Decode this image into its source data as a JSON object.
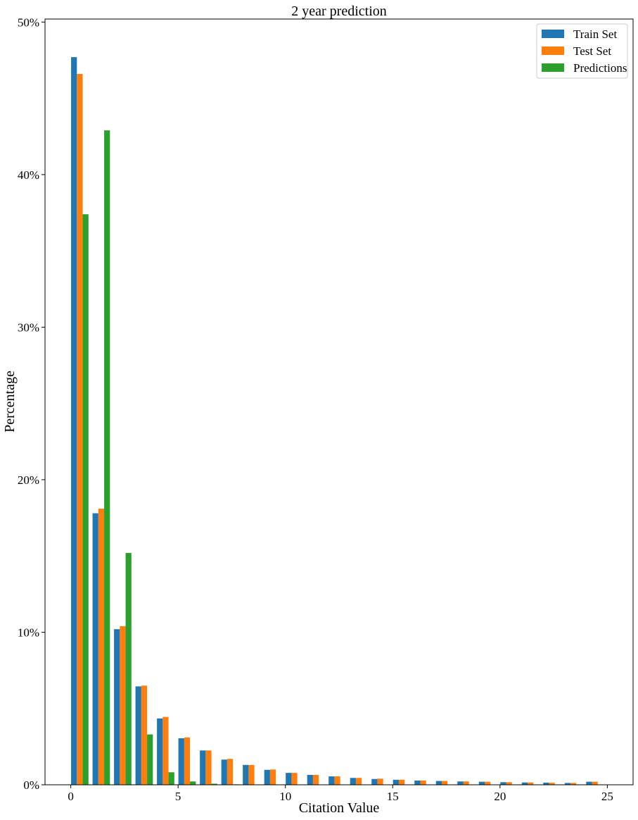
{
  "chart_data": {
    "type": "bar",
    "title": "2 year prediction",
    "xlabel": "Citation Value",
    "ylabel": "Percentage",
    "xlim": [
      -1.2,
      26.2
    ],
    "ylim": [
      0,
      50.2
    ],
    "x_ticks": [
      0,
      5,
      10,
      15,
      20,
      25
    ],
    "x_tick_labels": [
      "0",
      "5",
      "10",
      "15",
      "20",
      "25"
    ],
    "y_ticks": [
      0,
      10,
      20,
      30,
      40,
      50
    ],
    "y_tick_labels": [
      "0%",
      "10%",
      "20%",
      "30%",
      "40%",
      "50%"
    ],
    "grid": false,
    "legend_position": "top-right",
    "categories": [
      0,
      1,
      2,
      3,
      4,
      5,
      6,
      7,
      8,
      9,
      10,
      11,
      12,
      13,
      14,
      15,
      16,
      17,
      18,
      19,
      20,
      21,
      22,
      23,
      24
    ],
    "series": [
      {
        "name": "Train Set",
        "color": "#1f77b4",
        "values": [
          47.7,
          17.8,
          10.2,
          6.45,
          4.35,
          3.05,
          2.25,
          1.65,
          1.3,
          0.98,
          0.78,
          0.65,
          0.55,
          0.45,
          0.38,
          0.33,
          0.28,
          0.25,
          0.22,
          0.2,
          0.17,
          0.15,
          0.14,
          0.12,
          0.2
        ]
      },
      {
        "name": "Test Set",
        "color": "#ff7f0e",
        "values": [
          46.6,
          18.1,
          10.4,
          6.5,
          4.45,
          3.1,
          2.25,
          1.7,
          1.3,
          1.0,
          0.78,
          0.65,
          0.55,
          0.45,
          0.4,
          0.33,
          0.28,
          0.25,
          0.22,
          0.2,
          0.17,
          0.15,
          0.13,
          0.12,
          0.2
        ]
      },
      {
        "name": "Predictions",
        "color": "#2ca02c",
        "values": [
          37.4,
          42.9,
          15.2,
          3.3,
          0.82,
          0.22,
          0.07,
          0.03,
          0,
          0,
          0,
          0,
          0,
          0,
          0,
          0,
          0,
          0,
          0,
          0,
          0,
          0,
          0,
          0,
          0
        ]
      }
    ]
  }
}
